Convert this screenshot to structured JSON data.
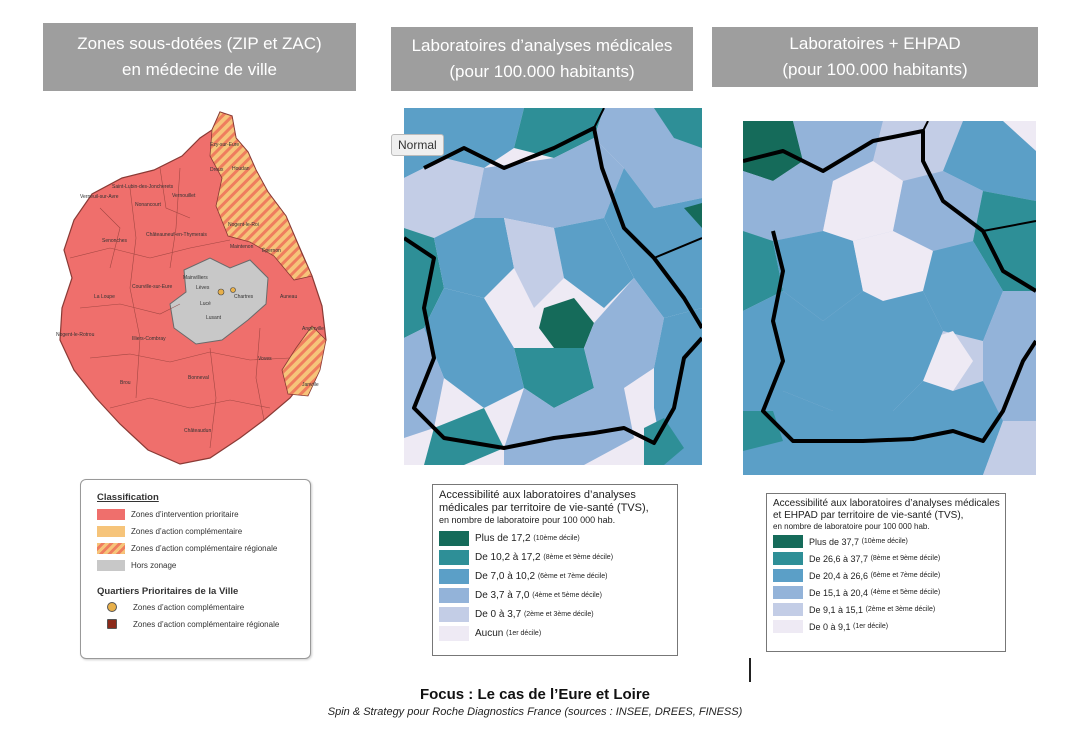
{
  "headers": {
    "panel1": [
      "Zones sous-dotées (ZIP et ZAC)",
      "en médecine de ville"
    ],
    "panel2": [
      "Laboratoires d’analyses médicales",
      "(pour 100.000 habitants)"
    ],
    "panel3": [
      "Laboratoires + EHPAD",
      "(pour 100.000 habitants)"
    ]
  },
  "tooltip": "Normal",
  "map1_labels": [
    "Ezy-sur-Eure",
    "Dreux",
    "Houdan",
    "Saint-Lubin-des-Joncherets",
    "Verneuil-sur-Avre",
    "Vernouillet",
    "Nonancourt",
    "Nogent-le-Roi",
    "Châteauneuf-en-Thymerais",
    "Senonches",
    "Maintenon",
    "Épernon",
    "Mainvilliers",
    "Chartres",
    "Lucé",
    "Auneau",
    "La Loupe",
    "Courville-sur-Eure",
    "Lèves",
    "Lusant",
    "Nogent-le-Rotrou",
    "Illiers-Combray",
    "Angerville",
    "Voves",
    "Janville",
    "Brou",
    "Bonneval",
    "Châteaudun"
  ],
  "classification": {
    "title": "Classification",
    "items": [
      {
        "label": "Zones d’intervention prioritaire",
        "color": "#ef6f6c"
      },
      {
        "label": "Zones d’action complémentaire",
        "color": "#f6c47a"
      },
      {
        "label": "Zones d’action complémentaire régionale",
        "color": "#f4a46a"
      },
      {
        "label": "Hors zonage",
        "color": "#c8c8c8"
      }
    ],
    "qpv_title": "Quartiers Prioritaires de la Ville",
    "qpv_items": [
      {
        "label": "Zones d’action complémentaire",
        "color": "#e8b04a"
      },
      {
        "label": "Zones d’action complémentaire régionale",
        "color": "#8b2a1a"
      }
    ]
  },
  "legend2": {
    "title": "Accessibilité aux laboratoires d’analyses médicales par territoire de vie-santé (TVS),",
    "subtitle": "en nombre de laboratoire pour 100 000 hab.",
    "items": [
      {
        "label": "Plus de 17,2",
        "note": "(10ème décile)",
        "color": "#156b5a"
      },
      {
        "label": "De 10,2 à 17,2",
        "note": "(8ème et 9ème décile)",
        "color": "#2e8f97"
      },
      {
        "label": "De 7,0 à 10,2",
        "note": "(6ème et 7ème décile)",
        "color": "#5b9fc7"
      },
      {
        "label": "De 3,7 à 7,0",
        "note": "(4ème et 5ème décile)",
        "color": "#93b3d9"
      },
      {
        "label": "De 0 à 3,7",
        "note": "(2ème et 3ème décile)",
        "color": "#c3cde6"
      },
      {
        "label": "Aucun",
        "note": "(1er décile)",
        "color": "#eeeaf4"
      }
    ]
  },
  "legend3": {
    "title": "Accessibilité aux laboratoires d’analyses médicales et EHPAD par territoire de vie-santé (TVS),",
    "subtitle": "en nombre de laboratoire pour 100 000 hab.",
    "items": [
      {
        "label": "Plus de 37,7",
        "note": "(10ème décile)",
        "color": "#156b5a"
      },
      {
        "label": "De 26,6 à 37,7",
        "note": "(8ème et 9ème décile)",
        "color": "#2e8f97"
      },
      {
        "label": "De 20,4 à 26,6",
        "note": "(6ème et 7ème décile)",
        "color": "#5b9fc7"
      },
      {
        "label": "De 15,1 à 20,4",
        "note": "(4ème et 5ème décile)",
        "color": "#93b3d9"
      },
      {
        "label": "De 9,1 à 15,1",
        "note": "(2ème et 3ème décile)",
        "color": "#c3cde6"
      },
      {
        "label": "De 0 à 9,1",
        "note": "(1er décile)",
        "color": "#eeeaf4"
      }
    ]
  },
  "footer": {
    "title": "Focus : Le cas de l’Eure et Loire",
    "source": "Spin & Strategy pour Roche Diagnostics France (sources : INSEE, DREES, FINESS)"
  }
}
